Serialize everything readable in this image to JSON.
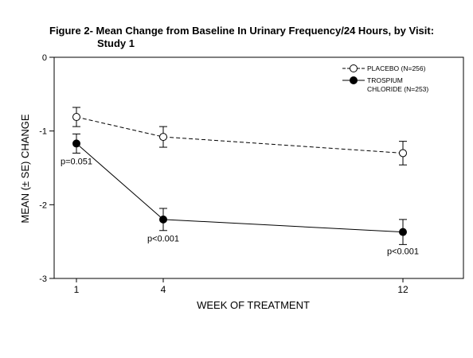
{
  "chart_data": {
    "type": "line",
    "title_line1": "Figure 2- Mean Change from Baseline In Urinary Frequency/24 Hours, by Visit:",
    "title_line2": "Study 1",
    "xlabel": "WEEK OF TREATMENT",
    "ylabel": "MEAN (± SE) CHANGE",
    "x": [
      1,
      4,
      12
    ],
    "x_tick_labels": [
      "1",
      "4",
      "12"
    ],
    "ylim": [
      -3,
      0
    ],
    "y_ticks": [
      0,
      -1,
      -2,
      -3
    ],
    "y_tick_labels": [
      "0",
      "-1",
      "-2",
      "-3"
    ],
    "grid": false,
    "legend_position": "top-right",
    "series": [
      {
        "name": "PLACEBO (N=256)",
        "name_lines": [
          "PLACEBO (N=256)"
        ],
        "marker": "open-circle",
        "line_style": "dashed",
        "values": [
          -0.81,
          -1.08,
          -1.3
        ],
        "se": [
          0.13,
          0.14,
          0.16
        ]
      },
      {
        "name": "TROSPIUM CHLORIDE (N=253)",
        "name_lines": [
          "TROSPIUM",
          "CHLORIDE (N=253)"
        ],
        "marker": "filled-circle",
        "line_style": "solid",
        "values": [
          -1.17,
          -2.2,
          -2.37
        ],
        "se": [
          0.13,
          0.15,
          0.17
        ]
      }
    ],
    "annotations": [
      {
        "text": "p=0.051",
        "x": 1,
        "y": -1.45
      },
      {
        "text": "p<0.001",
        "x": 4,
        "y": -2.5
      },
      {
        "text": "p<0.001",
        "x": 12,
        "y": -2.67
      }
    ]
  }
}
